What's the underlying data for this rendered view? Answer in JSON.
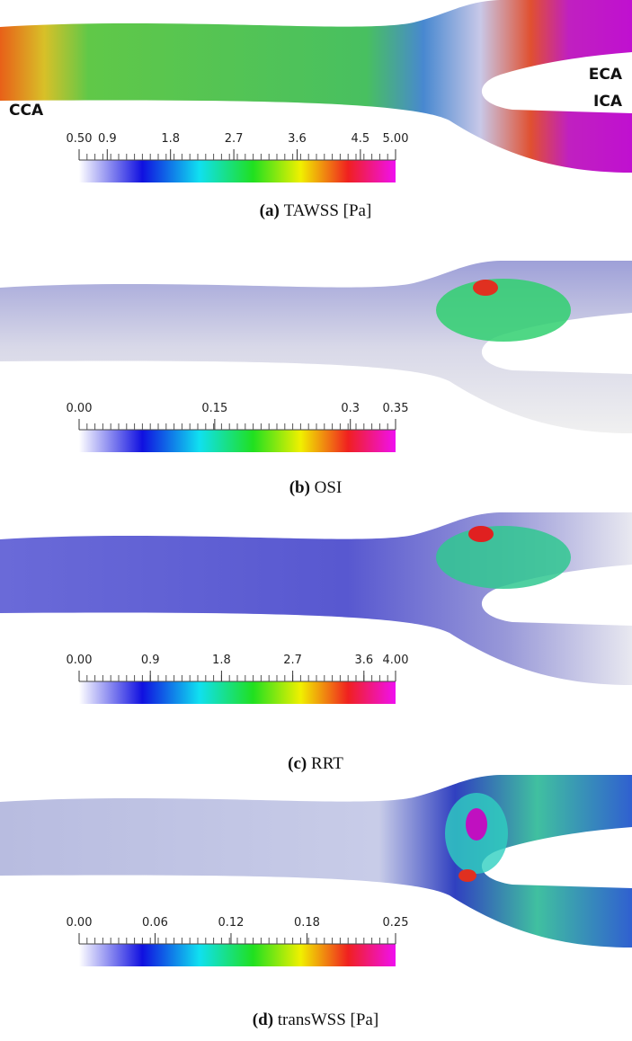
{
  "panels": [
    {
      "label": "(a)",
      "caption": "TAWSS [Pa]",
      "vessel_labels": [
        "CCA",
        "ECA",
        "ICA"
      ],
      "colorbar_ticks": [
        {
          "value": 0.5,
          "label": "0.50"
        },
        0.9,
        1.8,
        2.7,
        3.6,
        4.5,
        {
          "value": 5,
          "label": "5.00"
        }
      ]
    },
    {
      "label": "(b)",
      "caption": "OSI",
      "colorbar_ticks": [
        {
          "value": 0,
          "label": "0.00"
        },
        0.15,
        0.3,
        0.35
      ]
    },
    {
      "label": "(c)",
      "caption": "RRT",
      "colorbar_ticks": [
        {
          "value": 0,
          "label": "0.00"
        },
        0.9,
        1.8,
        2.7,
        3.6,
        {
          "value": 4,
          "label": "4.00"
        }
      ]
    },
    {
      "label": "(d)",
      "caption": "transWSS [Pa]",
      "colorbar_ticks": [
        {
          "value": 0,
          "label": "0.00"
        },
        0.06,
        0.12,
        0.18,
        0.25
      ]
    }
  ]
}
